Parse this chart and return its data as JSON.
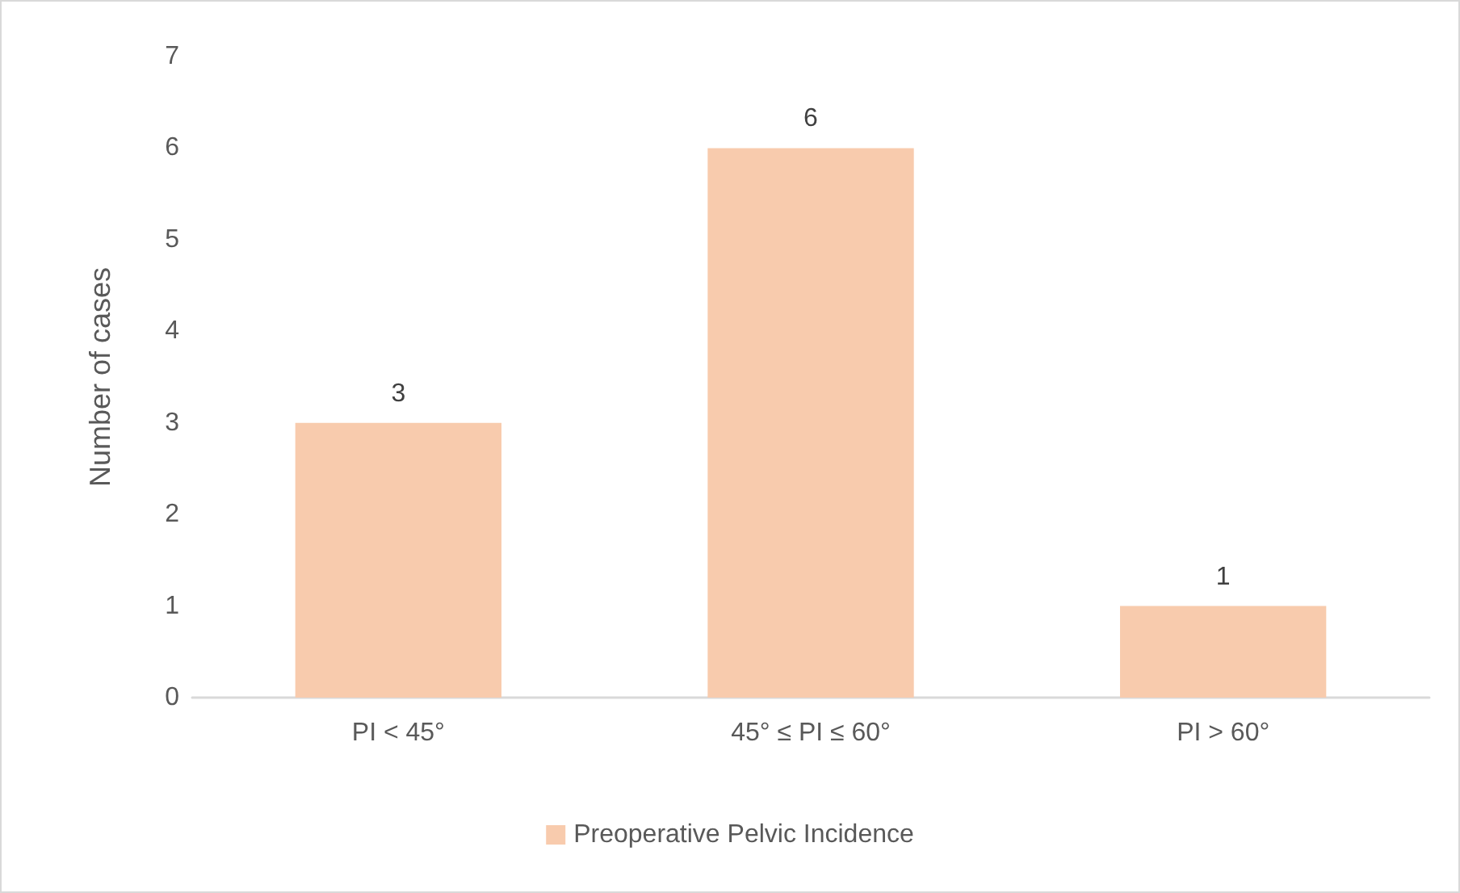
{
  "chart_data": {
    "type": "bar",
    "ylabel": "Number of cases",
    "categories": [
      "PI < 45°",
      "45° ≤ PI ≤ 60°",
      "PI > 60°"
    ],
    "series": [
      {
        "name": "Preoperative Pelvic Incidence",
        "color": "#f8cbad",
        "values": [
          3,
          6,
          1
        ]
      }
    ],
    "ylim": [
      0,
      7
    ],
    "yticks": [
      0,
      1,
      2,
      3,
      4,
      5,
      6,
      7
    ],
    "grid": false,
    "legend": "bottom",
    "data_labels": true
  }
}
